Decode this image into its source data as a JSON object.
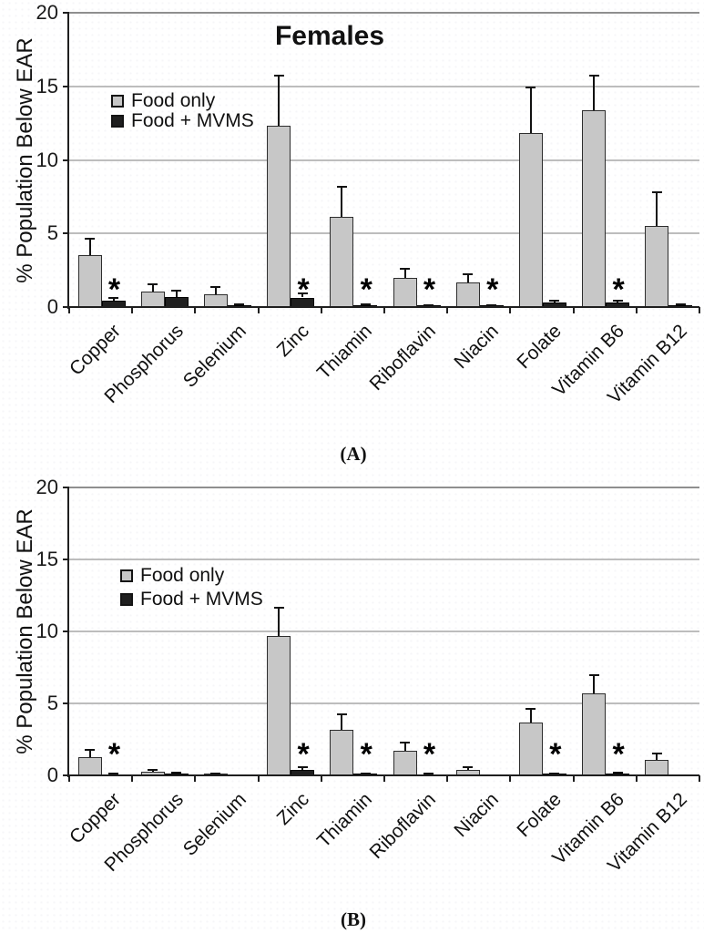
{
  "page": {
    "background": "#ffffff"
  },
  "figure": {
    "panel_count": 2,
    "caption_a": "(A)",
    "caption_b": "(B)"
  },
  "colors": {
    "food_only_fill": "#c7c7c7",
    "food_mvms_fill": "#1f1f1f",
    "gridline": "#bdbdbd",
    "plot_top_border": "#8f8f8f",
    "axis": "#1f1f1f",
    "text": "#111111"
  },
  "chart_data": [
    {
      "type": "bar",
      "panel": "A",
      "title": "Females",
      "ylabel": "% Population Below EAR",
      "xlabel": "",
      "ylim": [
        0,
        20
      ],
      "yticks": [
        0,
        5,
        10,
        15,
        20
      ],
      "grid": true,
      "legend_position": "upper-left-inside",
      "caption": "(A)",
      "categories": [
        "Copper",
        "Phosphorus",
        "Selenium",
        "Zinc",
        "Thiamin",
        "Riboflavin",
        "Niacin",
        "Folate",
        "Vitamin B6",
        "Vitamin B12"
      ],
      "series": [
        {
          "name": "Food only",
          "color": "#c7c7c7",
          "values": [
            3.5,
            1.05,
            0.85,
            12.3,
            6.1,
            2.0,
            1.7,
            11.8,
            13.4,
            5.5
          ],
          "errors_up": [
            1.15,
            0.5,
            0.5,
            3.4,
            2.1,
            0.6,
            0.55,
            3.1,
            2.3,
            2.3
          ]
        },
        {
          "name": "Food + MVMS",
          "color": "#1f1f1f",
          "values": [
            0.45,
            0.7,
            0.12,
            0.65,
            0.15,
            0.1,
            0.1,
            0.3,
            0.3,
            0.12
          ],
          "errors_up": [
            0.17,
            0.4,
            0.06,
            0.25,
            0.06,
            0.05,
            0.05,
            0.13,
            0.13,
            0.05
          ]
        }
      ],
      "significance_asterisks_on": [
        "Copper",
        "Zinc",
        "Thiamin",
        "Riboflavin",
        "Niacin",
        "Vitamin B6"
      ]
    },
    {
      "type": "bar",
      "panel": "B",
      "title": "",
      "ylabel": "% Population Below EAR",
      "xlabel": "",
      "ylim": [
        0,
        20
      ],
      "yticks": [
        0,
        5,
        10,
        15,
        20
      ],
      "grid": true,
      "legend_position": "upper-left-inside",
      "caption": "(B)",
      "categories": [
        "Copper",
        "Phosphorus",
        "Selenium",
        "Zinc",
        "Thiamin",
        "Riboflavin",
        "Niacin",
        "Folate",
        "Vitamin B6",
        "Vitamin B12"
      ],
      "series": [
        {
          "name": "Food only",
          "color": "#c7c7c7",
          "values": [
            1.25,
            0.25,
            0.1,
            9.7,
            3.15,
            1.7,
            0.38,
            3.65,
            5.7,
            1.05
          ],
          "errors_up": [
            0.5,
            0.12,
            0.05,
            1.95,
            1.1,
            0.6,
            0.18,
            1.0,
            1.25,
            0.5
          ]
        },
        {
          "name": "Food + MVMS",
          "color": "#1f1f1f",
          "values": [
            0.07,
            0.15,
            0.03,
            0.4,
            0.1,
            0.08,
            0.04,
            0.1,
            0.15,
            0.05
          ],
          "errors_up": [
            0.03,
            0.06,
            0.02,
            0.15,
            0.04,
            0.03,
            0.02,
            0.04,
            0.05,
            0.02
          ]
        }
      ],
      "significance_asterisks_on": [
        "Copper",
        "Zinc",
        "Thiamin",
        "Riboflavin",
        "Folate",
        "Vitamin B6"
      ]
    }
  ]
}
